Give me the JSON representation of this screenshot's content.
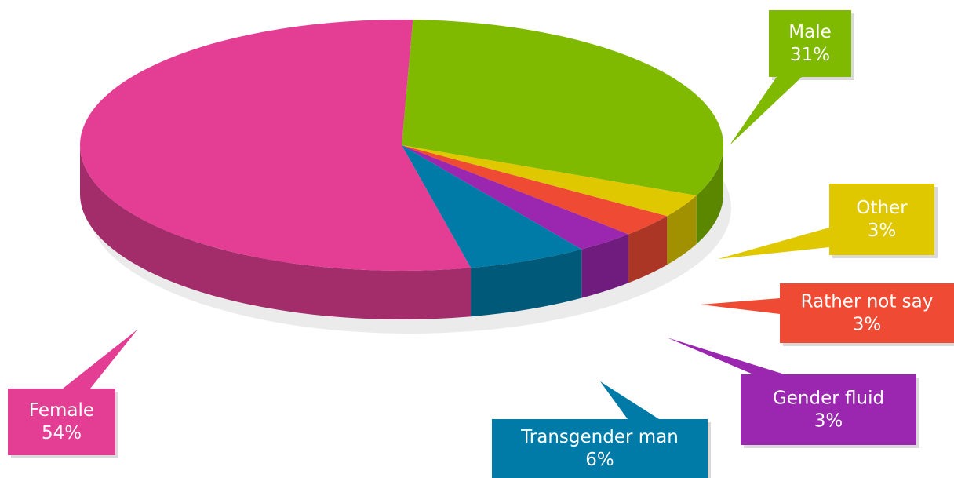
{
  "chart_data": {
    "type": "pie",
    "categories": [
      "Male",
      "Other",
      "Rather not say",
      "Gender fluid",
      "Transgender man",
      "Female"
    ],
    "values": [
      31,
      3,
      3,
      3,
      6,
      54
    ],
    "value_labels": [
      "31%",
      "3%",
      "3%",
      "3%",
      "6%",
      "54%"
    ],
    "colors": [
      "#7fba00",
      "#e0c800",
      "#ef4b34",
      "#9b27b0",
      "#007ba7",
      "#e33d94"
    ]
  }
}
